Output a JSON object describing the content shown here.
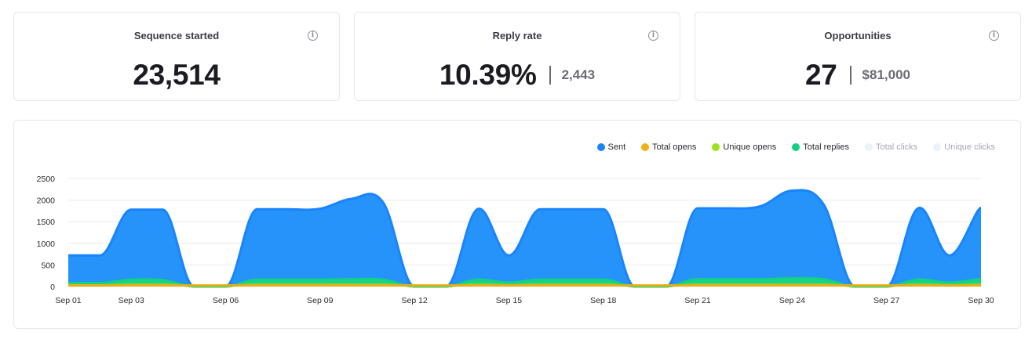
{
  "stats": [
    {
      "title": "Sequence started",
      "value": "23,514",
      "sub": null
    },
    {
      "title": "Reply rate",
      "value": "10.39%",
      "sub": "2,443"
    },
    {
      "title": "Opportunities",
      "value": "27",
      "sub": "$81,000"
    }
  ],
  "legend": [
    {
      "label": "Sent",
      "color": "#1a84ff",
      "active": true
    },
    {
      "label": "Total opens",
      "color": "#f5b00f",
      "active": true
    },
    {
      "label": "Unique opens",
      "color": "#9be21d",
      "active": true
    },
    {
      "label": "Total replies",
      "color": "#13d183",
      "active": true
    },
    {
      "label": "Total clicks",
      "color": "#eaf3fc",
      "active": false
    },
    {
      "label": "Unique clicks",
      "color": "#eaf3fc",
      "active": false
    }
  ],
  "chart_data": {
    "type": "area",
    "x": [
      "Sep 01",
      "Sep 02",
      "Sep 03",
      "Sep 04",
      "Sep 05",
      "Sep 06",
      "Sep 07",
      "Sep 08",
      "Sep 09",
      "Sep 10",
      "Sep 11",
      "Sep 12",
      "Sep 13",
      "Sep 14",
      "Sep 15",
      "Sep 16",
      "Sep 17",
      "Sep 18",
      "Sep 19",
      "Sep 20",
      "Sep 21",
      "Sep 22",
      "Sep 23",
      "Sep 24",
      "Sep 25",
      "Sep 26",
      "Sep 27",
      "Sep 28",
      "Sep 29",
      "Sep 30"
    ],
    "x_tick_labels": [
      "Sep 01",
      "Sep 03",
      "Sep 06",
      "Sep 09",
      "Sep 12",
      "Sep 15",
      "Sep 18",
      "Sep 21",
      "Sep 24",
      "Sep 27",
      "Sep 30"
    ],
    "y_ticks": [
      0,
      500,
      1000,
      1500,
      2000,
      2500
    ],
    "ylim": [
      0,
      2500
    ],
    "grid": true,
    "series": [
      {
        "name": "Sent",
        "values": [
          720,
          720,
          1780,
          1780,
          0,
          0,
          1790,
          1790,
          1800,
          2030,
          1950,
          0,
          0,
          1790,
          720,
          1790,
          1790,
          1790,
          0,
          0,
          1810,
          1810,
          1860,
          2220,
          1900,
          0,
          0,
          1810,
          720,
          1820
        ]
      },
      {
        "name": "Total replies",
        "values": [
          80,
          80,
          160,
          150,
          0,
          0,
          160,
          160,
          160,
          170,
          160,
          0,
          0,
          160,
          90,
          160,
          160,
          160,
          0,
          0,
          170,
          170,
          170,
          190,
          170,
          0,
          0,
          160,
          90,
          170
        ]
      },
      {
        "name": "Unique opens",
        "values": [
          30,
          30,
          40,
          40,
          20,
          20,
          40,
          40,
          40,
          40,
          40,
          20,
          20,
          40,
          30,
          40,
          40,
          40,
          20,
          20,
          40,
          40,
          40,
          40,
          40,
          20,
          20,
          40,
          30,
          40
        ]
      },
      {
        "name": "Total opens",
        "values": [
          25,
          25,
          30,
          30,
          25,
          25,
          30,
          30,
          30,
          30,
          30,
          25,
          25,
          30,
          25,
          30,
          30,
          30,
          25,
          25,
          30,
          30,
          30,
          30,
          30,
          25,
          25,
          30,
          25,
          30
        ]
      }
    ]
  }
}
